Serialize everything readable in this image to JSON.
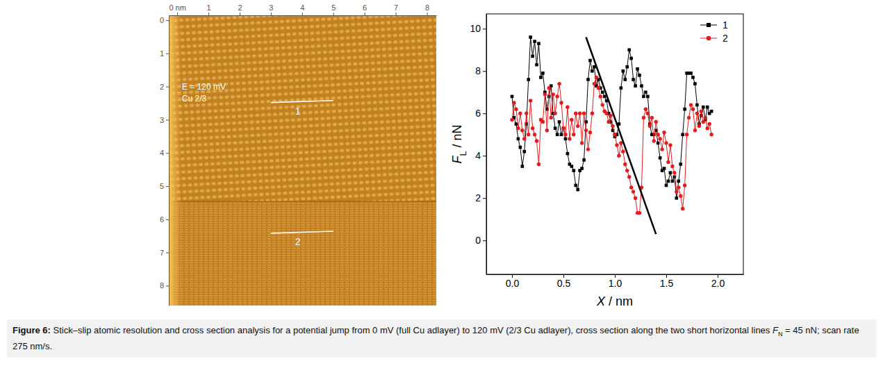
{
  "chart_data": [
    {
      "type": "image",
      "xlim": [
        -0.27,
        8.3
      ],
      "ylim": [
        -0.15,
        8.6
      ],
      "xticks": [
        {
          "value": 0,
          "label": "0 nm"
        },
        1,
        2,
        3,
        4,
        5,
        6,
        7,
        8
      ],
      "yticks": [
        0,
        1,
        2,
        3,
        4,
        5,
        6,
        7,
        8
      ],
      "annotations": [
        {
          "text": "E = 120 mV",
          "x": 0.15,
          "y": 2.1
        },
        {
          "text": "Cu 2/3",
          "x": 0.15,
          "y": 2.45
        }
      ],
      "lines": [
        {
          "label": "1",
          "x": [
            3.0,
            5.0
          ],
          "y": [
            2.48,
            2.42
          ],
          "color": "#ffffff"
        },
        {
          "label": "2",
          "x": [
            3.0,
            5.0
          ],
          "y": [
            6.42,
            6.36
          ],
          "color": "#ffffff"
        }
      ]
    },
    {
      "type": "line",
      "xlabel": "X / nm",
      "ylabel": "FL / nN",
      "xlim": [
        -0.25,
        2.25
      ],
      "ylim": [
        -1.6,
        10.7
      ],
      "xticks": [
        {
          "value": 0,
          "label": "0.0"
        },
        0.5,
        {
          "value": 1,
          "label": "1.0"
        },
        1.5,
        {
          "value": 2,
          "label": "2.0"
        }
      ],
      "yticks": [
        0,
        2,
        4,
        6,
        8,
        10
      ],
      "legend": "upper right",
      "x": [
        0,
        0.02,
        0.04,
        0.06,
        0.08,
        0.1,
        0.12,
        0.14,
        0.16,
        0.18,
        0.2,
        0.22,
        0.24,
        0.26,
        0.28,
        0.3,
        0.32,
        0.34,
        0.36,
        0.38,
        0.4,
        0.42,
        0.44,
        0.46,
        0.48,
        0.5,
        0.52,
        0.54,
        0.56,
        0.58,
        0.6,
        0.62,
        0.64,
        0.66,
        0.68,
        0.7,
        0.72,
        0.74,
        0.76,
        0.78,
        0.8,
        0.82,
        0.84,
        0.86,
        0.88,
        0.9,
        0.92,
        0.94,
        0.96,
        0.98,
        1.0,
        1.02,
        1.04,
        1.06,
        1.08,
        1.1,
        1.12,
        1.14,
        1.16,
        1.18,
        1.2,
        1.22,
        1.24,
        1.26,
        1.28,
        1.3,
        1.32,
        1.34,
        1.36,
        1.38,
        1.4,
        1.42,
        1.44,
        1.46,
        1.48,
        1.5,
        1.52,
        1.54,
        1.56,
        1.58,
        1.6,
        1.62,
        1.64,
        1.66,
        1.68,
        1.7,
        1.72,
        1.74,
        1.76,
        1.78,
        1.8,
        1.82,
        1.84,
        1.86,
        1.88,
        1.9,
        1.92,
        1.94
      ],
      "series": [
        {
          "name": "1",
          "color": "#000000",
          "marker": "square",
          "line_style": "solid",
          "values": [
            6.8,
            5.8,
            5.5,
            4.8,
            4.4,
            3.5,
            4.2,
            5.5,
            7.6,
            9.6,
            8.7,
            9.4,
            8.3,
            9.3,
            7.7,
            7.9,
            7.0,
            6.2,
            6.8,
            7.3,
            6.0,
            5.3,
            5.0,
            5.6,
            5.0,
            5.3,
            4.8,
            4.1,
            3.6,
            3.5,
            3.3,
            2.6,
            2.4,
            3.3,
            3.4,
            3.8,
            5.6,
            7.6,
            8.5,
            8.0,
            8.2,
            7.3,
            7.6,
            7.2,
            7.0,
            6.8,
            6.6,
            6.0,
            5.6,
            5.2,
            4.9,
            5.0,
            5.5,
            7.2,
            8.0,
            7.6,
            8.2,
            9.0,
            8.6,
            7.6,
            7.3,
            8.1,
            7.8,
            7.3,
            6.8,
            7.0,
            6.8,
            5.5,
            5.0,
            5.0,
            5.2,
            4.6,
            3.9,
            3.3,
            3.4,
            2.6,
            2.8,
            3.2,
            2.8,
            3.0,
            2.0,
            2.8,
            3.6,
            5.0,
            6.2,
            7.9,
            7.9,
            7.9,
            7.7,
            7.4,
            6.4,
            5.5,
            5.9,
            6.3,
            5.7,
            6.3,
            6.0,
            6.1
          ]
        },
        {
          "name": "2",
          "color": "#e8191b",
          "marker": "circle",
          "line_style": "solid",
          "values": [
            5.7,
            6.5,
            6.2,
            5.3,
            6.0,
            5.2,
            4.8,
            6.0,
            5.0,
            6.6,
            5.3,
            5.0,
            4.7,
            3.6,
            5.7,
            5.6,
            6.9,
            5.2,
            7.2,
            5.8,
            6.9,
            6.0,
            6.8,
            7.4,
            6.5,
            5.3,
            5.0,
            6.3,
            4.8,
            5.7,
            5.0,
            6.0,
            5.4,
            6.0,
            4.6,
            6.0,
            5.2,
            4.3,
            5.1,
            6.0,
            7.4,
            7.7,
            7.2,
            6.8,
            6.4,
            6.1,
            6.0,
            5.6,
            5.9,
            5.4,
            5.0,
            4.5,
            4.0,
            4.6,
            4.2,
            3.6,
            3.3,
            3.0,
            2.5,
            2.3,
            2.0,
            1.3,
            1.3,
            2.5,
            5.8,
            6.2,
            6.0,
            5.4,
            5.8,
            4.7,
            5.6,
            5.0,
            4.8,
            4.3,
            5.1,
            4.6,
            3.7,
            4.5,
            3.5,
            3.2,
            2.3,
            2.5,
            2.1,
            1.5,
            2.6,
            5.0,
            5.8,
            6.4,
            6.2,
            5.2,
            6.0,
            5.4,
            6.1,
            5.6,
            5.8,
            5.3,
            5.5,
            5.0
          ]
        }
      ],
      "lines": [
        {
          "x": [
            0.72,
            1.4
          ],
          "y": [
            9.6,
            0.3
          ],
          "color": "#000000"
        }
      ]
    }
  ],
  "caption": {
    "label": "Figure 6:",
    "text": "Stick–slip atomic resolution and cross section analysis for a potential jump from 0 mV (full Cu adlayer) to 120 mV (2/3 Cu adlayer), cross section along the two short horizontal lines FN = 45 nN; scan rate 275 nm/s."
  }
}
